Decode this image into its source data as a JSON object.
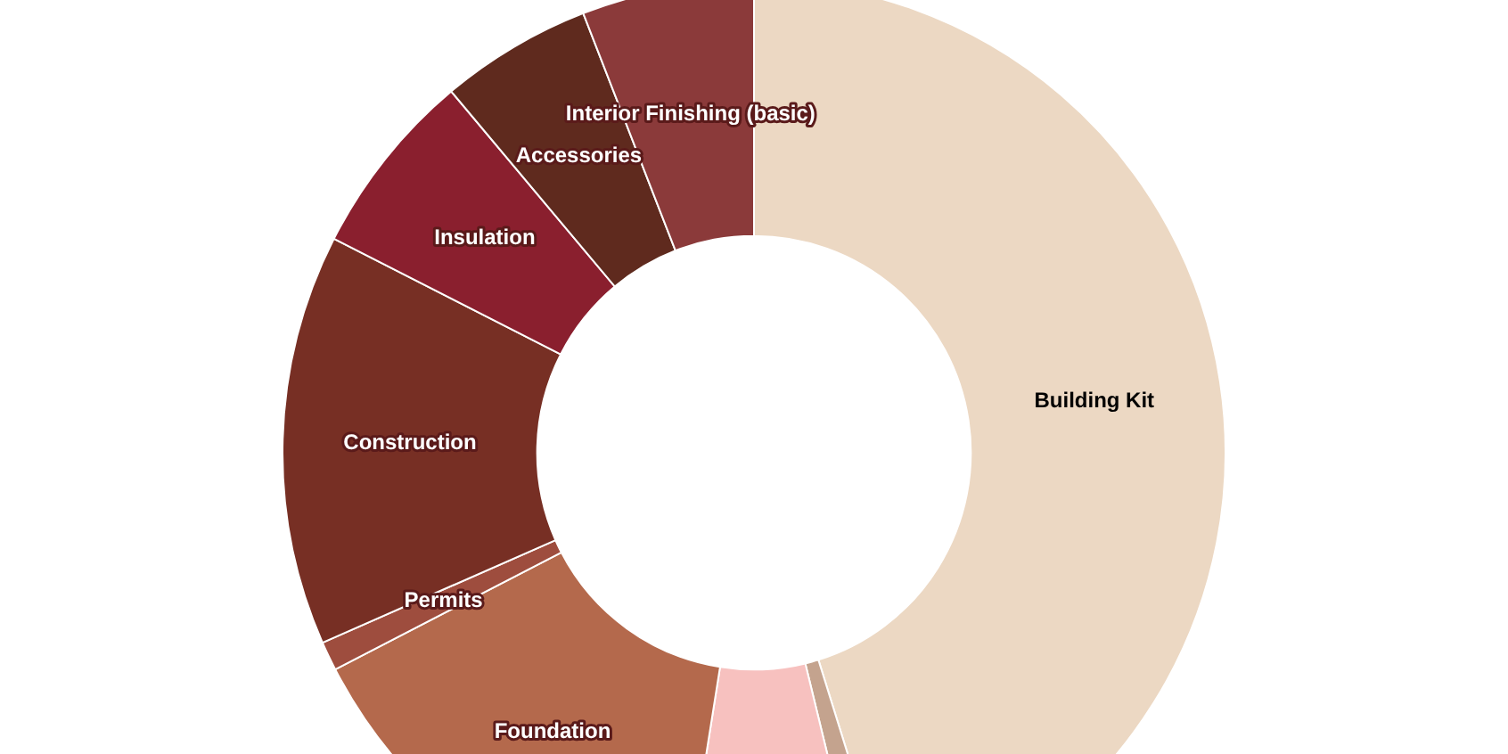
{
  "chart_data": {
    "type": "donut",
    "categories": [
      "Building Kit",
      null,
      null,
      "Foundation",
      "Permits",
      "Construction",
      "Insulation",
      "Accessories",
      "Interior Finishing (basic)"
    ],
    "values": [
      45.2,
      1,
      6.3,
      14.9,
      1,
      14.1,
      6.4,
      5.2,
      5.9
    ],
    "colors": [
      "#ecd8c3",
      "#c4a38e",
      "#f7c1bf",
      "#b4694c",
      "#9e4d3e",
      "#772f24",
      "#8a1f2e",
      "#5f2a1e",
      "#8b3a3a"
    ],
    "legend": false
  }
}
